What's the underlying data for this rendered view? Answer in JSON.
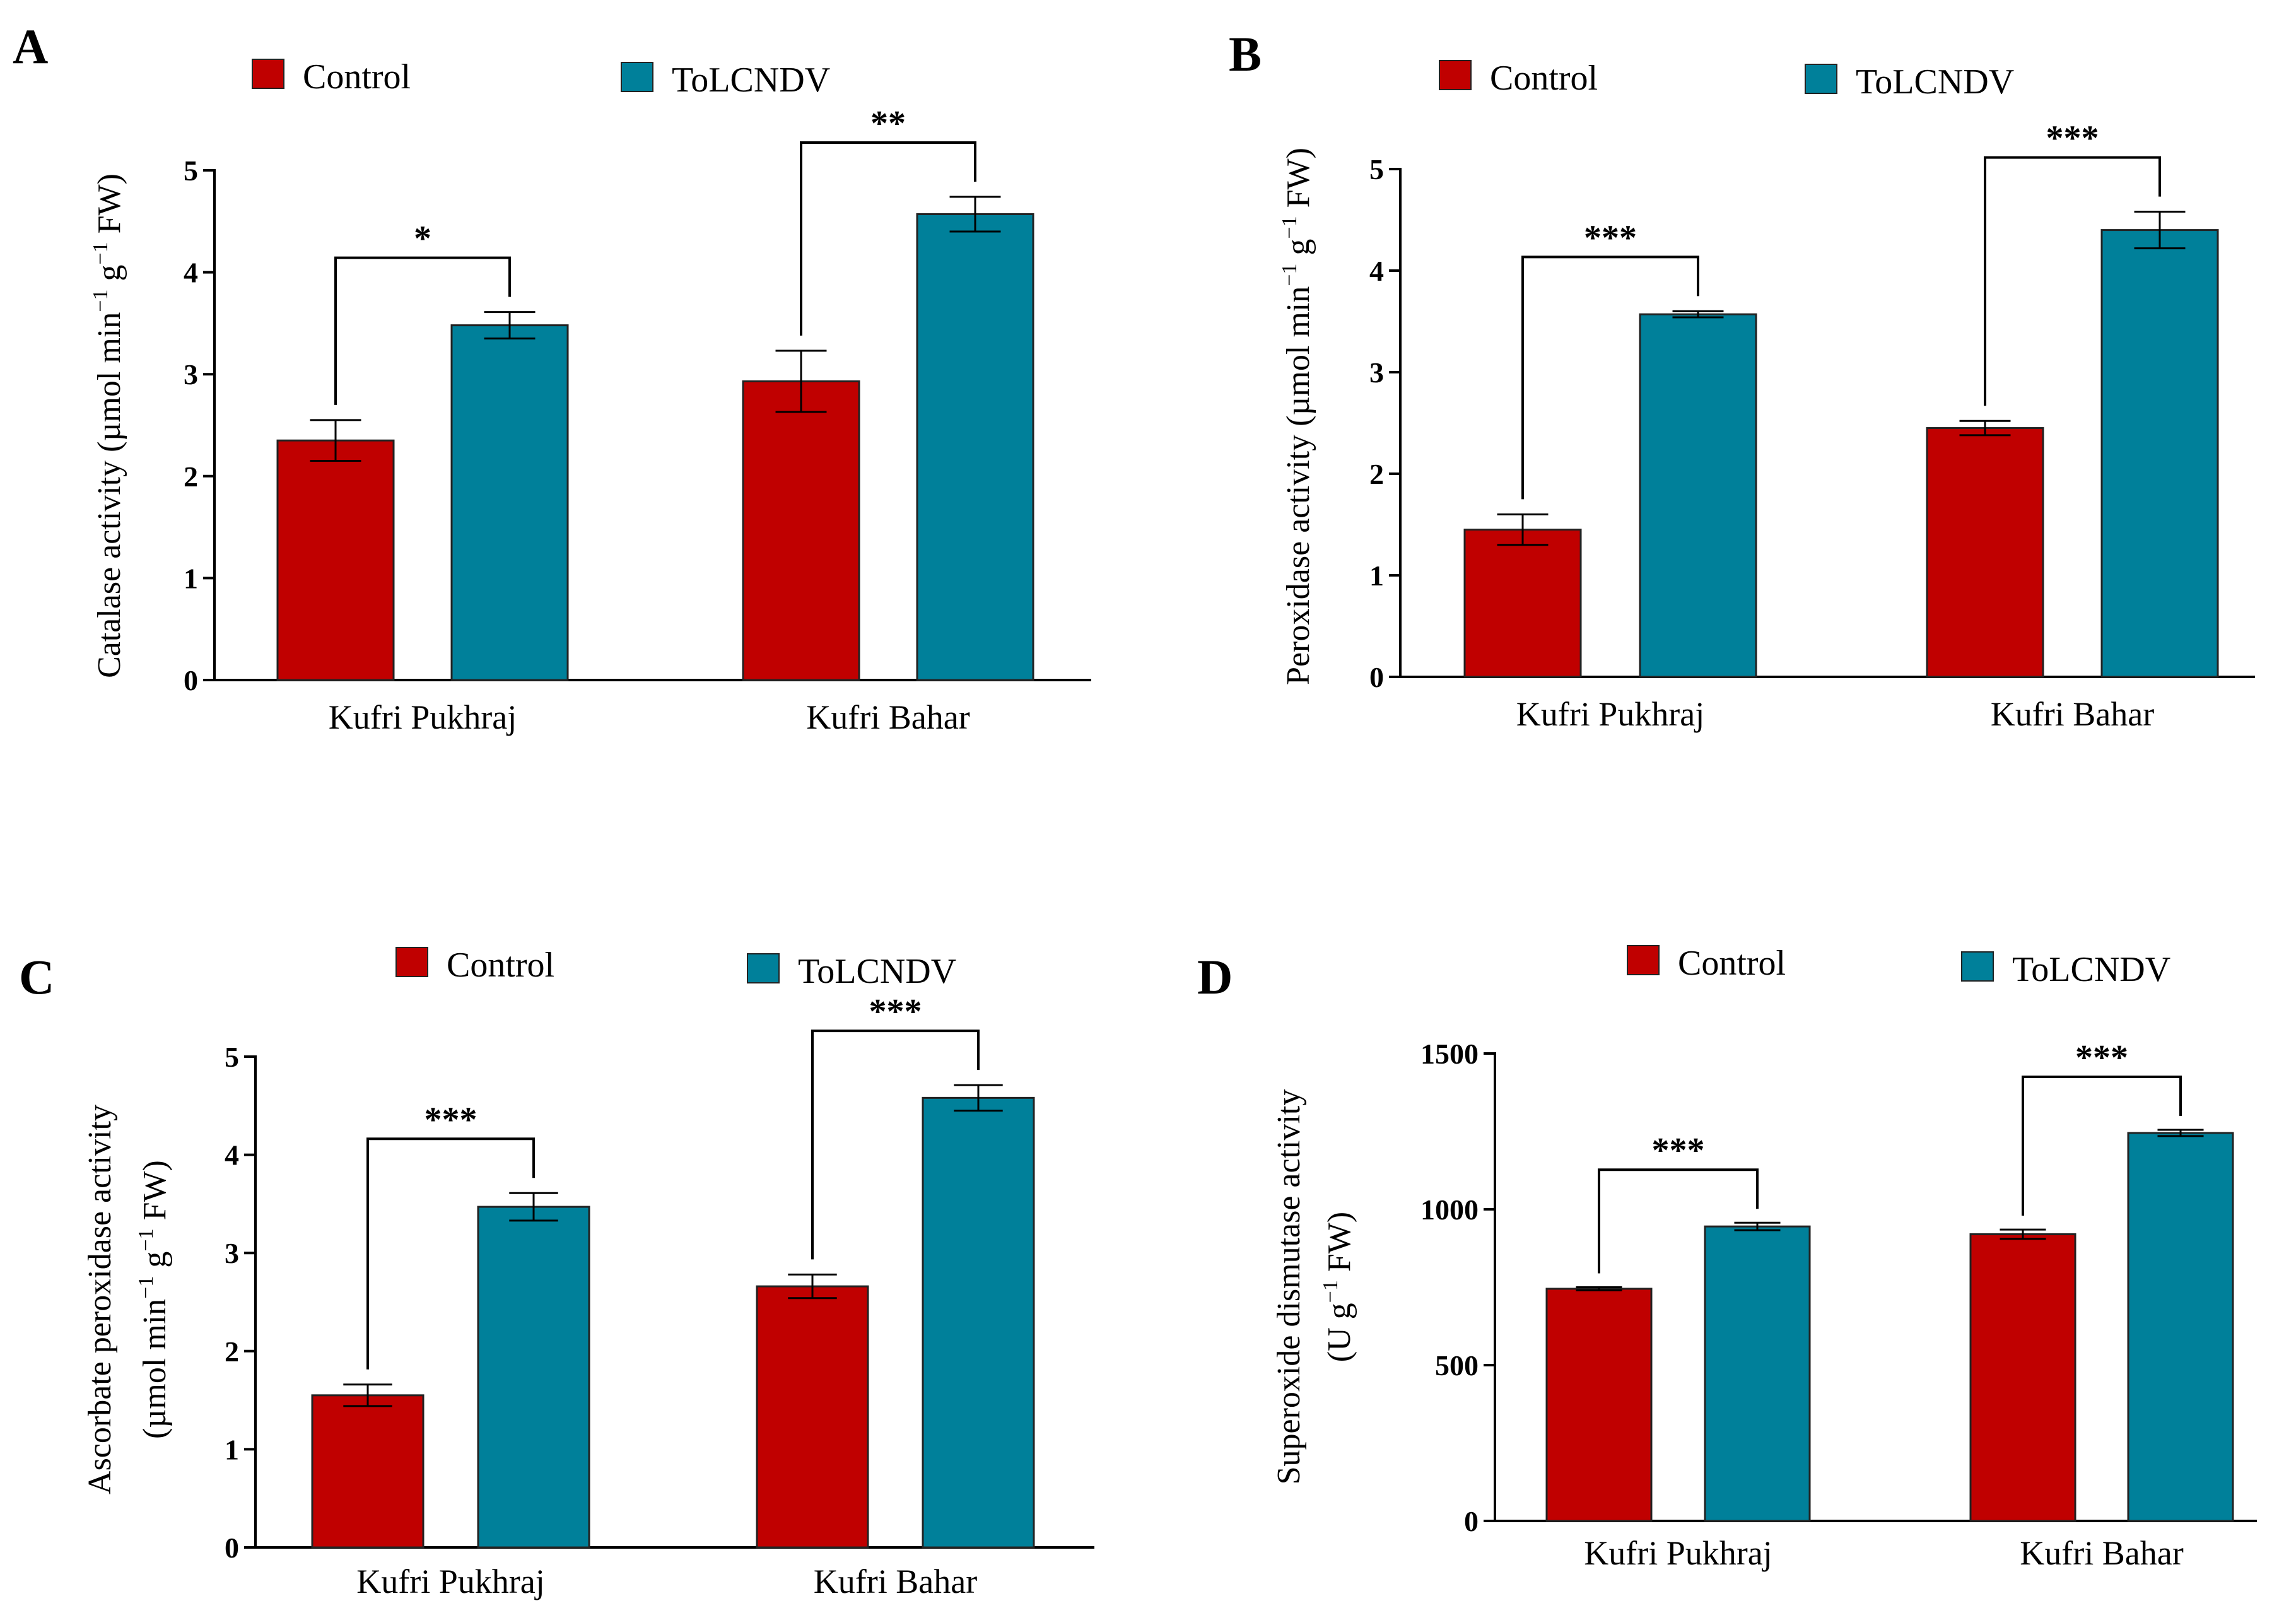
{
  "colors": {
    "control": "#c00000",
    "tolcndv": "#00809a",
    "axis": "#000000"
  },
  "legend": {
    "control_label": "Control",
    "tolcndv_label": "ToLCNDV"
  },
  "chart_data": [
    {
      "panel": "A",
      "type": "bar",
      "ylabel": [
        "Catalase activity (µmol min",
        "−1",
        " g",
        "−1",
        " FW)"
      ],
      "ylim": [
        0,
        5
      ],
      "yticks": [
        "0",
        "1",
        "2",
        "3",
        "4",
        "5"
      ],
      "categories": [
        "Kufri Pukhraj",
        "Kufri Bahar"
      ],
      "series": [
        {
          "name": "Control",
          "values": [
            2.35,
            2.93
          ],
          "errors": [
            0.2,
            0.3
          ]
        },
        {
          "name": "ToLCNDV",
          "values": [
            3.48,
            4.57
          ],
          "errors": [
            0.13,
            0.17
          ]
        }
      ],
      "significance": [
        "*",
        "**"
      ]
    },
    {
      "panel": "B",
      "type": "bar",
      "ylabel": [
        "Peroxidase activity (µmol min",
        "−1",
        " g",
        "−1",
        " FW)"
      ],
      "ylim": [
        0,
        5
      ],
      "yticks": [
        "0",
        "1",
        "2",
        "3",
        "4",
        "5"
      ],
      "categories": [
        "Kufri Pukhraj",
        "Kufri Bahar"
      ],
      "series": [
        {
          "name": "Control",
          "values": [
            1.45,
            2.45
          ],
          "errors": [
            0.15,
            0.07
          ]
        },
        {
          "name": "ToLCNDV",
          "values": [
            3.57,
            4.4
          ],
          "errors": [
            0.03,
            0.18
          ]
        }
      ],
      "significance": [
        "***",
        "***"
      ]
    },
    {
      "panel": "C",
      "type": "bar",
      "ylabel_line1": "Ascorbate peroxidase activity",
      "ylabel": [
        "(µmol min",
        "−1",
        " g",
        "−1",
        " FW)"
      ],
      "ylim": [
        0,
        5
      ],
      "yticks": [
        "0",
        "1",
        "2",
        "3",
        "4",
        "5"
      ],
      "categories": [
        "Kufri Pukhraj",
        "Kufri Bahar"
      ],
      "series": [
        {
          "name": "Control",
          "values": [
            1.55,
            2.66
          ],
          "errors": [
            0.11,
            0.12
          ]
        },
        {
          "name": "ToLCNDV",
          "values": [
            3.47,
            4.58
          ],
          "errors": [
            0.14,
            0.13
          ]
        }
      ],
      "significance": [
        "***",
        "***"
      ]
    },
    {
      "panel": "D",
      "type": "bar",
      "ylabel_line1": "Superoxide dismutase activity",
      "ylabel": [
        "(U g",
        "−1",
        " FW)"
      ],
      "ylim": [
        0,
        1500
      ],
      "yticks": [
        "0",
        "500",
        "1000",
        "1500"
      ],
      "categories": [
        "Kufri Pukhraj",
        "Kufri Bahar"
      ],
      "series": [
        {
          "name": "Control",
          "values": [
            745,
            920
          ],
          "errors": [
            5,
            15
          ]
        },
        {
          "name": "ToLCNDV",
          "values": [
            945,
            1245
          ],
          "errors": [
            12,
            10
          ]
        }
      ],
      "significance": [
        "***",
        "***"
      ]
    }
  ]
}
